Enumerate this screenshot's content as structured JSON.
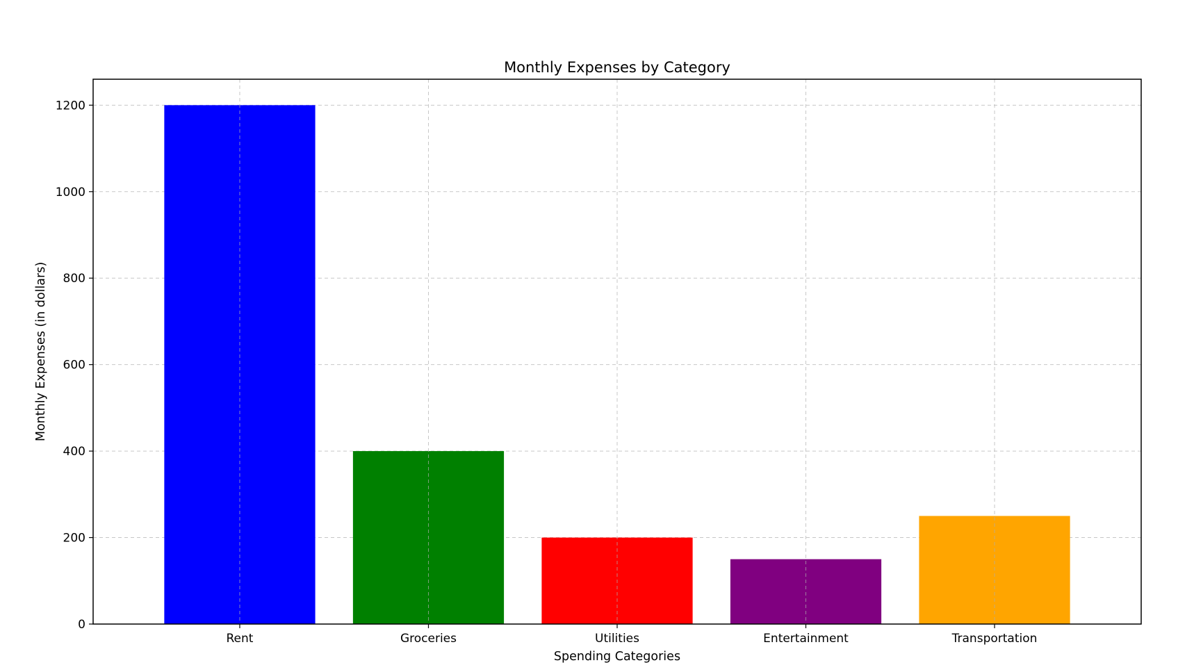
{
  "chart_data": {
    "type": "bar",
    "title": "Monthly Expenses by Category",
    "xlabel": "Spending Categories",
    "ylabel": "Monthly Expenses (in dollars)",
    "categories": [
      "Rent",
      "Groceries",
      "Utilities",
      "Entertainment",
      "Transportation"
    ],
    "values": [
      1200,
      400,
      200,
      150,
      250
    ],
    "colors": [
      "#0000ff",
      "#008000",
      "#ff0000",
      "#800080",
      "#ffa500"
    ],
    "ylim": [
      0,
      1260
    ],
    "yticks": [
      0,
      200,
      400,
      600,
      800,
      1000,
      1200
    ],
    "grid": true
  }
}
